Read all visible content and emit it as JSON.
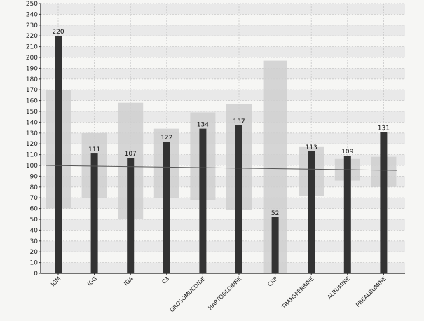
{
  "chart_data": {
    "type": "bar",
    "title": "",
    "xlabel": "",
    "ylabel": "",
    "ylim": [
      0,
      250
    ],
    "ytick_step": 10,
    "grid": true,
    "categories": [
      "IGM",
      "IGG",
      "IGA",
      "C3",
      "OROSOMUCOIDE",
      "HAPTOGLOBINE",
      "CRP",
      "TRANSFERRINE",
      "ALBUMINE",
      "PREALBUMINE"
    ],
    "values": [
      220,
      111,
      107,
      122,
      134,
      137,
      52,
      113,
      109,
      131
    ],
    "data_labels": [
      "220",
      "111",
      "107",
      "122",
      "134",
      "137",
      "52",
      "113",
      "109",
      "131"
    ],
    "reference_ranges": [
      [
        60,
        170
      ],
      [
        70,
        130
      ],
      [
        50,
        158
      ],
      [
        70,
        134
      ],
      [
        68,
        149
      ],
      [
        59,
        157
      ],
      [
        0,
        197
      ],
      [
        72,
        117
      ],
      [
        86,
        106
      ],
      [
        80,
        108
      ]
    ],
    "reference_line": 100,
    "colors": {
      "bar": "#333333",
      "range": "#cfcfcf",
      "grid": "#c8c8c8",
      "band": "#e4e4e4"
    }
  }
}
